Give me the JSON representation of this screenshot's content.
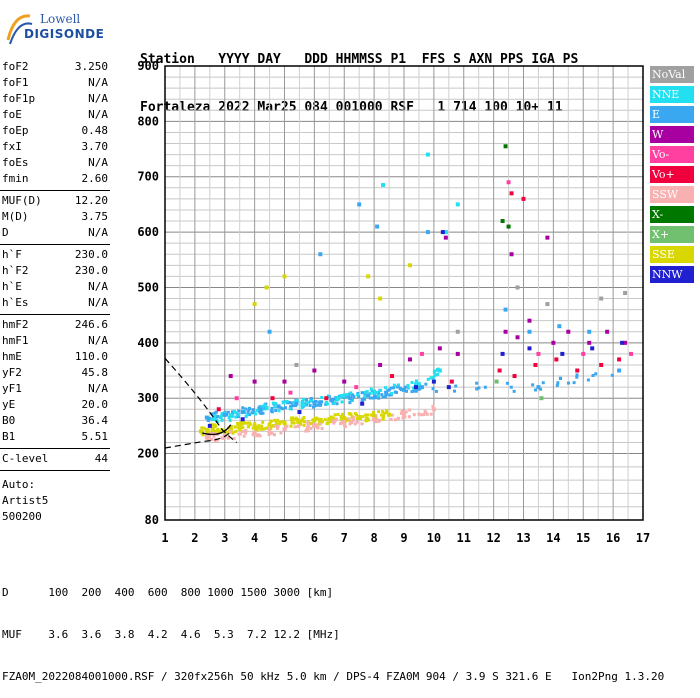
{
  "logo": {
    "line1": "Lowell",
    "line2": "DIGISONDE"
  },
  "header": {
    "line1": "Station   YYYY DAY   DDD HHMMSS P1  FFS S AXN PPS IGA PS",
    "line2": "Fortaleza 2022 Mar25 084 001000 RSF   1 714 100 10+ 11"
  },
  "params": [
    {
      "k": "foF2",
      "v": "3.250"
    },
    {
      "k": "foF1",
      "v": "N/A"
    },
    {
      "k": "foF1p",
      "v": "N/A"
    },
    {
      "k": "foE",
      "v": "N/A"
    },
    {
      "k": "foEp",
      "v": "0.48"
    },
    {
      "k": "fxI",
      "v": "3.70"
    },
    {
      "k": "foEs",
      "v": "N/A"
    },
    {
      "k": "fmin",
      "v": "2.60"
    },
    {
      "k": "MUF(D)",
      "v": "12.20"
    },
    {
      "k": "M(D)",
      "v": "3.75"
    },
    {
      "k": "D",
      "v": "N/A"
    },
    {
      "k": "h`F",
      "v": "230.0"
    },
    {
      "k": "h`F2",
      "v": "230.0"
    },
    {
      "k": "h`E",
      "v": "N/A"
    },
    {
      "k": "h`Es",
      "v": "N/A"
    },
    {
      "k": "hmF2",
      "v": "246.6"
    },
    {
      "k": "hmF1",
      "v": "N/A"
    },
    {
      "k": "hmE",
      "v": "110.0"
    },
    {
      "k": "yF2",
      "v": "45.8"
    },
    {
      "k": "yF1",
      "v": "N/A"
    },
    {
      "k": "yE",
      "v": "20.0"
    },
    {
      "k": "B0",
      "v": "36.4"
    },
    {
      "k": "B1",
      "v": "5.51"
    },
    {
      "k": "C-level",
      "v": "44"
    }
  ],
  "auto": [
    "Auto:",
    "Artist5",
    "500200"
  ],
  "legend": [
    {
      "label": "NoVal",
      "color": "#a0a0a0"
    },
    {
      "label": "NNE",
      "color": "#22e0f0"
    },
    {
      "label": "E",
      "color": "#3aa8f0"
    },
    {
      "label": "W",
      "color": "#a800a0"
    },
    {
      "label": "Vo-",
      "color": "#ff40a0"
    },
    {
      "label": "Vo+",
      "color": "#f0003c"
    },
    {
      "label": "SSW",
      "color": "#f8b0b0"
    },
    {
      "label": "X-",
      "color": "#007800"
    },
    {
      "label": "X+",
      "color": "#70c070"
    },
    {
      "label": "SSE",
      "color": "#d8d800"
    },
    {
      "label": "NNW",
      "color": "#2020d0"
    }
  ],
  "footer": {
    "line1": "D      100  200  400  600  800 1000 1500 3000 [km]",
    "line2": "MUF    3.6  3.6  3.8  4.2  4.6  5.3  7.2 12.2 [MHz]",
    "line3": "FZA0M_2022084001000.RSF / 320fx256h 50 kHz 5.0 km / DPS-4 FZA0M 904 / 3.9 S 321.6 E   Ion2Png 1.3.20"
  },
  "chart_data": {
    "type": "scatter",
    "title": "",
    "xlabel": "",
    "ylabel": "",
    "xlim": [
      1,
      17
    ],
    "ylim": [
      80,
      900
    ],
    "xticks": [
      1,
      2,
      3,
      4,
      5,
      6,
      7,
      8,
      9,
      10,
      11,
      12,
      13,
      14,
      15,
      16,
      17
    ],
    "yticks": [
      80,
      200,
      300,
      400,
      500,
      600,
      700,
      800,
      900
    ],
    "grid": true,
    "series": [
      {
        "name": "SSE",
        "color": "#d8d800",
        "points": [
          [
            2.2,
            240
          ],
          [
            2.6,
            245
          ],
          [
            3.0,
            240
          ],
          [
            3.5,
            248
          ],
          [
            4.0,
            250
          ],
          [
            4.5,
            252
          ],
          [
            5.0,
            255
          ],
          [
            5.5,
            258
          ],
          [
            6.0,
            260
          ],
          [
            6.5,
            262
          ],
          [
            7.0,
            264
          ],
          [
            7.5,
            266
          ],
          [
            8.0,
            268
          ],
          [
            8.5,
            270
          ],
          [
            4.0,
            470
          ],
          [
            4.4,
            500
          ],
          [
            5.0,
            520
          ],
          [
            7.8,
            520
          ],
          [
            8.2,
            480
          ],
          [
            9.2,
            540
          ]
        ]
      },
      {
        "name": "E",
        "color": "#3aa8f0",
        "points": [
          [
            2.4,
            265
          ],
          [
            3.0,
            270
          ],
          [
            3.6,
            275
          ],
          [
            4.2,
            280
          ],
          [
            4.8,
            285
          ],
          [
            5.4,
            290
          ],
          [
            6.0,
            292
          ],
          [
            6.6,
            296
          ],
          [
            7.2,
            300
          ],
          [
            7.8,
            305
          ],
          [
            8.4,
            310
          ],
          [
            9.0,
            315
          ],
          [
            9.6,
            320
          ],
          [
            4.5,
            420
          ],
          [
            6.2,
            560
          ],
          [
            7.5,
            650
          ],
          [
            8.1,
            610
          ],
          [
            9.8,
            600
          ],
          [
            12.4,
            460
          ],
          [
            13.2,
            420
          ],
          [
            14.2,
            430
          ],
          [
            15.2,
            420
          ],
          [
            13.5,
            320
          ],
          [
            16.2,
            350
          ]
        ]
      },
      {
        "name": "NNE",
        "color": "#22e0f0",
        "points": [
          [
            2.6,
            262
          ],
          [
            3.2,
            268
          ],
          [
            4.4,
            282
          ],
          [
            5.6,
            291
          ],
          [
            6.8,
            300
          ],
          [
            8.0,
            310
          ],
          [
            9.4,
            325
          ],
          [
            10.2,
            350
          ],
          [
            10.8,
            650
          ],
          [
            8.3,
            685
          ],
          [
            9.8,
            740
          ],
          [
            10.4,
            600
          ]
        ]
      },
      {
        "name": "W",
        "color": "#a800a0",
        "points": [
          [
            3.2,
            340
          ],
          [
            4.0,
            330
          ],
          [
            5.0,
            330
          ],
          [
            6.0,
            350
          ],
          [
            7.0,
            330
          ],
          [
            8.2,
            360
          ],
          [
            9.2,
            370
          ],
          [
            10.2,
            390
          ],
          [
            10.8,
            380
          ],
          [
            12.4,
            420
          ],
          [
            12.8,
            410
          ],
          [
            13.2,
            440
          ],
          [
            14.0,
            400
          ],
          [
            14.5,
            420
          ],
          [
            15.2,
            400
          ],
          [
            15.8,
            420
          ],
          [
            16.4,
            400
          ],
          [
            12.6,
            560
          ],
          [
            13.8,
            590
          ],
          [
            10.4,
            590
          ]
        ]
      },
      {
        "name": "Vo-",
        "color": "#ff40a0",
        "points": [
          [
            3.4,
            300
          ],
          [
            5.2,
            310
          ],
          [
            7.4,
            320
          ],
          [
            9.6,
            380
          ],
          [
            12.5,
            690
          ],
          [
            13.5,
            380
          ],
          [
            15.0,
            380
          ],
          [
            16.6,
            380
          ]
        ]
      },
      {
        "name": "Vo+",
        "color": "#f0003c",
        "points": [
          [
            2.8,
            280
          ],
          [
            4.6,
            300
          ],
          [
            6.4,
            300
          ],
          [
            8.6,
            340
          ],
          [
            10.6,
            330
          ],
          [
            12.2,
            350
          ],
          [
            12.7,
            340
          ],
          [
            13.4,
            360
          ],
          [
            14.1,
            370
          ],
          [
            14.8,
            350
          ],
          [
            15.6,
            360
          ],
          [
            16.2,
            370
          ],
          [
            12.6,
            670
          ],
          [
            13.0,
            660
          ]
        ]
      },
      {
        "name": "SSW",
        "color": "#f8b0b0",
        "points": [
          [
            2.4,
            230
          ],
          [
            3.0,
            232
          ],
          [
            4.0,
            238
          ],
          [
            5.0,
            244
          ],
          [
            6.0,
            250
          ],
          [
            7.0,
            256
          ],
          [
            8.0,
            262
          ],
          [
            9.0,
            270
          ],
          [
            10.0,
            280
          ]
        ]
      },
      {
        "name": "X-",
        "color": "#007800",
        "points": [
          [
            12.4,
            755
          ],
          [
            12.5,
            610
          ],
          [
            12.3,
            620
          ]
        ]
      },
      {
        "name": "X+",
        "color": "#70c070",
        "points": [
          [
            13.6,
            300
          ],
          [
            12.1,
            330
          ]
        ]
      },
      {
        "name": "NNW",
        "color": "#2020d0",
        "points": [
          [
            2.5,
            250
          ],
          [
            3.6,
            262
          ],
          [
            5.5,
            275
          ],
          [
            7.6,
            290
          ],
          [
            9.4,
            320
          ],
          [
            10.0,
            330
          ],
          [
            10.5,
            320
          ],
          [
            12.3,
            380
          ],
          [
            13.2,
            390
          ],
          [
            14.3,
            380
          ],
          [
            15.3,
            390
          ],
          [
            16.3,
            400
          ],
          [
            10.3,
            600
          ]
        ]
      },
      {
        "name": "NoVal",
        "color": "#a0a0a0",
        "points": [
          [
            5.4,
            360
          ],
          [
            12.8,
            500
          ],
          [
            13.8,
            470
          ],
          [
            15.6,
            480
          ],
          [
            16.4,
            490
          ],
          [
            10.8,
            420
          ]
        ]
      }
    ]
  }
}
